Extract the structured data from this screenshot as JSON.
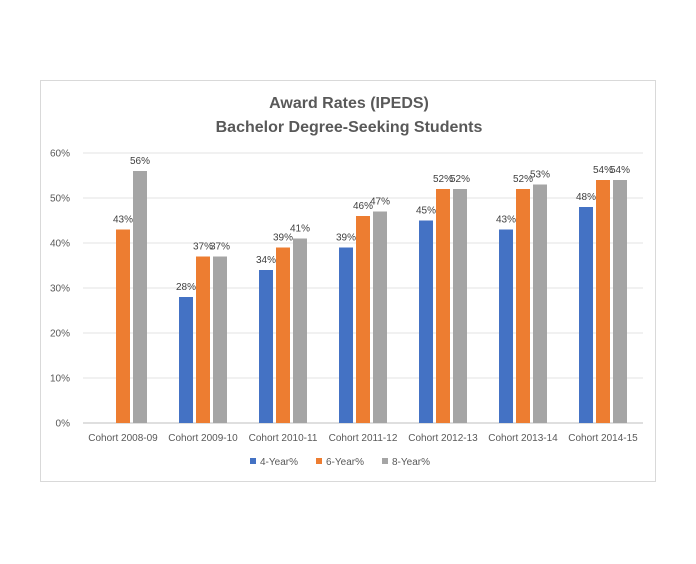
{
  "chart_data": {
    "type": "bar",
    "title": "Award Rates (IPEDS)",
    "subtitle": "Bachelor Degree-Seeking Students",
    "categories": [
      "Cohort 2008-09",
      "Cohort 2009-10",
      "Cohort 2010-11",
      "Cohort 2011-12",
      "Cohort 2012-13",
      "Cohort 2013-14",
      "Cohort 2014-15"
    ],
    "series": [
      {
        "name": "4-Year%",
        "color": "#4472c4",
        "values": [
          null,
          28,
          34,
          39,
          45,
          43,
          48
        ]
      },
      {
        "name": "6-Year%",
        "color": "#ed7d31",
        "values": [
          43,
          37,
          39,
          46,
          52,
          52,
          54
        ]
      },
      {
        "name": "8-Year%",
        "color": "#a5a5a5",
        "values": [
          56,
          37,
          41,
          47,
          52,
          53,
          54
        ]
      }
    ],
    "y_ticks": [
      "0%",
      "10%",
      "20%",
      "30%",
      "40%",
      "50%",
      "60%"
    ],
    "ylim": [
      0,
      60
    ],
    "value_suffix": "%",
    "grid": true,
    "legend_position": "bottom"
  }
}
